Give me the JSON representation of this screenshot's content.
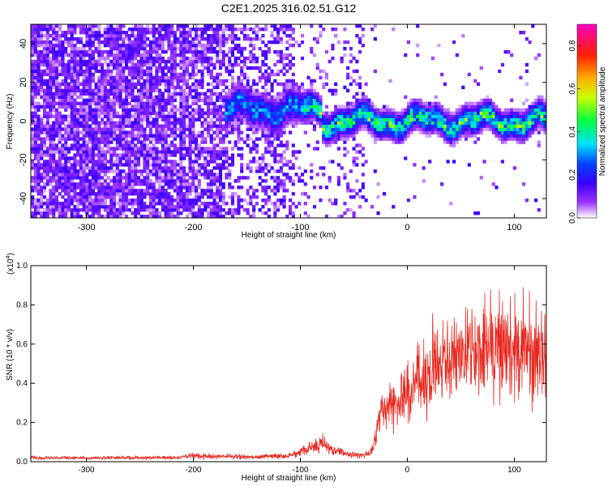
{
  "title": "C2E1.2025.316.02.51.G12",
  "chart_data": [
    {
      "type": "heatmap",
      "title": "C2E1.2025.316.02.51.G12",
      "xlabel": "Height of straight line (km)",
      "ylabel": "Frequency (Hz)",
      "xlim": [
        -352,
        130
      ],
      "ylim": [
        -50,
        50
      ],
      "x_ticks": [
        -300,
        -200,
        -100,
        0,
        100
      ],
      "x_tick_labels": [
        "-300",
        "-200",
        "-100",
        "0",
        "100"
      ],
      "y_ticks": [
        -40,
        -20,
        0,
        20,
        40
      ],
      "y_tick_labels": [
        "-40",
        "-20",
        "0",
        "20",
        "40"
      ],
      "colorbar": {
        "label": "Normalized spectral amplitude",
        "range": [
          0,
          0.9
        ],
        "ticks": [
          0.0,
          0.2,
          0.4,
          0.6,
          0.8
        ],
        "tick_labels": [
          "0.0",
          "0.2",
          "0.4",
          "0.6",
          "0.8"
        ],
        "colors": [
          "#ffffff",
          "#8000ff",
          "#0000ff",
          "#00ffff",
          "#00ff00",
          "#ffff00",
          "#ff8000",
          "#ff0000",
          "#ff00ff"
        ]
      },
      "regions": [
        {
          "x": [
            -352,
            -170
          ],
          "description": "broadband noise, amplitude ~0.05-0.15"
        },
        {
          "x": [
            -170,
            130
          ],
          "description": "narrow signal band near 0 Hz, amplitude up to ~0.6"
        }
      ]
    },
    {
      "type": "line",
      "xlabel": "Height of straight line (km)",
      "ylabel": "SNR (10 * v/v)",
      "scale_label": "(x10",
      "scale_exponent": "4",
      "scale_close": ")",
      "xlim": [
        -352,
        130
      ],
      "ylim": [
        0,
        1.0
      ],
      "x_ticks": [
        -300,
        -200,
        -100,
        0,
        100
      ],
      "x_tick_labels": [
        "-300",
        "-200",
        "-100",
        "0",
        "100"
      ],
      "y_ticks": [
        0.0,
        0.2,
        0.4,
        0.6,
        0.8,
        1.0
      ],
      "y_tick_labels": [
        "0.0",
        "0.2",
        "0.4",
        "0.6",
        "0.8",
        "1.0"
      ],
      "series_color": "#e8281f",
      "trend": {
        "x": [
          -352,
          -250,
          -215,
          -205,
          -150,
          -110,
          -95,
          -80,
          -70,
          -55,
          -45,
          -35,
          -30,
          -25,
          -15,
          -5,
          5,
          20,
          40,
          55,
          70,
          90,
          110,
          130
        ],
        "y": [
          0.02,
          0.02,
          0.02,
          0.03,
          0.025,
          0.03,
          0.06,
          0.09,
          0.06,
          0.04,
          0.03,
          0.04,
          0.12,
          0.25,
          0.3,
          0.33,
          0.38,
          0.45,
          0.52,
          0.58,
          0.58,
          0.55,
          0.55,
          0.55
        ]
      },
      "noise_fraction": 0.22
    }
  ]
}
